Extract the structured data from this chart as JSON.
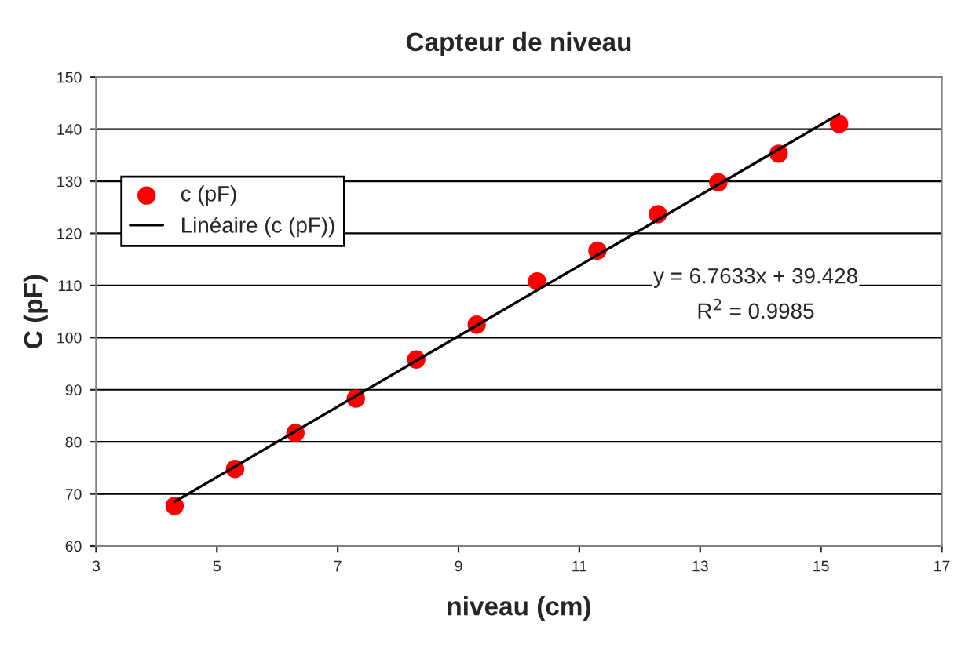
{
  "chart_data": {
    "type": "scatter",
    "title": "Capteur de niveau",
    "xlabel": "niveau (cm)",
    "ylabel": "C (pF)",
    "x": [
      4.3,
      5.3,
      6.3,
      7.3,
      8.3,
      9.3,
      10.3,
      11.3,
      12.3,
      13.3,
      14.3,
      15.3
    ],
    "series": [
      {
        "name": "c (pF)",
        "color": "#ff0000",
        "marker": "circle",
        "values": [
          67.7,
          74.8,
          81.7,
          88.3,
          95.8,
          102.5,
          110.8,
          116.7,
          123.7,
          129.8,
          135.3,
          141.0
        ]
      },
      {
        "name": "Linéaire (c (pF))",
        "type": "line",
        "color": "#000000",
        "marker": "none",
        "line_style": "solid",
        "x": [
          4.3,
          15.3
        ],
        "values": [
          68.5,
          142.9
        ]
      }
    ],
    "annotations": [
      "y = 6.7633x + 39.428",
      "R$^{2}$ = 0.9985"
    ],
    "xlim": [
      3,
      17
    ],
    "xticks": [
      3,
      5,
      7,
      9,
      11,
      13,
      15,
      17
    ],
    "ylim": [
      60,
      150
    ],
    "yticks": [
      60,
      70,
      80,
      90,
      100,
      110,
      120,
      130,
      140,
      150
    ],
    "grid": "y",
    "legend": "top left"
  }
}
